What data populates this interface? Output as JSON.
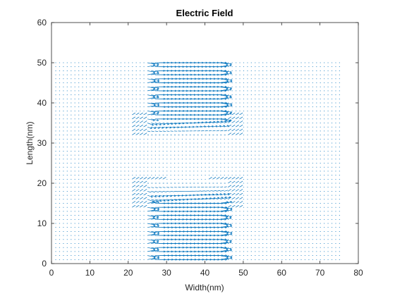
{
  "chart_data": {
    "type": "quiver",
    "title": "Electric Field",
    "xlabel": "Width(nm)",
    "ylabel": "Length(nm)",
    "xlim": [
      0,
      80
    ],
    "ylim": [
      0,
      60
    ],
    "xticks": [
      0,
      10,
      20,
      30,
      40,
      50,
      60,
      70,
      80
    ],
    "yticks": [
      0,
      10,
      20,
      30,
      40,
      50,
      60
    ],
    "grid": false,
    "box": true,
    "color": "#0072bd",
    "field_domain": {
      "x_range": [
        1,
        75
      ],
      "y_range": [
        1,
        50
      ],
      "spacing": 1
    },
    "strong_field_region": {
      "x_range": [
        25,
        45
      ],
      "y_bands": [
        [
          1,
          15
        ],
        [
          36,
          50
        ]
      ],
      "direction": "horizontal"
    },
    "fringing_regions": [
      {
        "x": 25,
        "y_range": [
          15,
          20
        ]
      },
      {
        "x": 45,
        "y_range": [
          15,
          20
        ]
      },
      {
        "x": 25,
        "y_range": [
          33,
          36
        ]
      },
      {
        "x": 45,
        "y_range": [
          33,
          36
        ]
      }
    ]
  }
}
